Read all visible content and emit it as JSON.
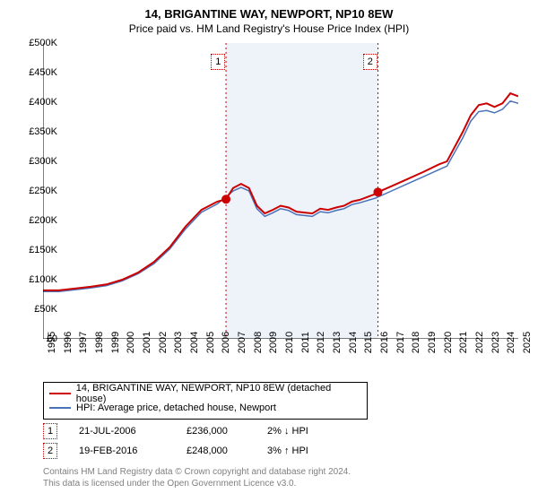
{
  "title": "14, BRIGANTINE WAY, NEWPORT, NP10 8EW",
  "subtitle": "Price paid vs. HM Land Registry's House Price Index (HPI)",
  "chart": {
    "type": "line",
    "x_years": [
      1995,
      1996,
      1997,
      1998,
      1999,
      2000,
      2001,
      2002,
      2003,
      2004,
      2005,
      2006,
      2007,
      2008,
      2009,
      2010,
      2011,
      2012,
      2013,
      2014,
      2015,
      2016,
      2017,
      2018,
      2019,
      2020,
      2021,
      2022,
      2023,
      2024,
      2025
    ],
    "ylim": [
      0,
      500000
    ],
    "ytick_step": 50000,
    "ytick_labels": [
      "£0",
      "£50K",
      "£100K",
      "£150K",
      "£200K",
      "£250K",
      "£300K",
      "£350K",
      "£400K",
      "£450K",
      "£500K"
    ],
    "background_color": "#ffffff",
    "axis_color": "#000000",
    "shaded_band": {
      "from_year": 2006.55,
      "to_year": 2016.14,
      "color": "#eef2f9"
    },
    "vlines": [
      {
        "year": 2006.55,
        "color": "#cc0000",
        "dash": "2,3"
      },
      {
        "year": 2016.14,
        "color": "#cc0000",
        "dash": "2,3"
      }
    ],
    "marker_points": [
      {
        "id": "1",
        "year": 2006.55,
        "value": 236000,
        "color": "#cc0000",
        "label_year": 2005.6
      },
      {
        "id": "2",
        "year": 2016.14,
        "value": 248000,
        "color": "#cc0000",
        "label_year": 2015.2
      }
    ],
    "series": [
      {
        "name": "14, BRIGANTINE WAY, NEWPORT, NP10 8EW (detached house)",
        "color": "#cc0000",
        "width": 2,
        "points": [
          [
            1995,
            82000
          ],
          [
            1996,
            82000
          ],
          [
            1997,
            85000
          ],
          [
            1998,
            88000
          ],
          [
            1999,
            92000
          ],
          [
            2000,
            100000
          ],
          [
            2001,
            112000
          ],
          [
            2002,
            130000
          ],
          [
            2003,
            155000
          ],
          [
            2004,
            190000
          ],
          [
            2005,
            218000
          ],
          [
            2006,
            232000
          ],
          [
            2006.55,
            236000
          ],
          [
            2007,
            255000
          ],
          [
            2007.5,
            262000
          ],
          [
            2008,
            255000
          ],
          [
            2008.5,
            225000
          ],
          [
            2009,
            212000
          ],
          [
            2009.5,
            218000
          ],
          [
            2010,
            225000
          ],
          [
            2010.5,
            222000
          ],
          [
            2011,
            215000
          ],
          [
            2012,
            212000
          ],
          [
            2012.5,
            220000
          ],
          [
            2013,
            218000
          ],
          [
            2013.5,
            222000
          ],
          [
            2014,
            225000
          ],
          [
            2014.5,
            232000
          ],
          [
            2015,
            235000
          ],
          [
            2015.5,
            240000
          ],
          [
            2016,
            245000
          ],
          [
            2016.14,
            248000
          ],
          [
            2017,
            258000
          ],
          [
            2018,
            270000
          ],
          [
            2019,
            282000
          ],
          [
            2020,
            295000
          ],
          [
            2020.5,
            300000
          ],
          [
            2021,
            325000
          ],
          [
            2021.5,
            350000
          ],
          [
            2022,
            378000
          ],
          [
            2022.5,
            395000
          ],
          [
            2023,
            398000
          ],
          [
            2023.5,
            392000
          ],
          [
            2024,
            398000
          ],
          [
            2024.5,
            415000
          ],
          [
            2025,
            410000
          ]
        ]
      },
      {
        "name": "HPI: Average price, detached house, Newport",
        "color": "#4a72b8",
        "width": 1.5,
        "points": [
          [
            1995,
            80000
          ],
          [
            1996,
            80000
          ],
          [
            1997,
            83000
          ],
          [
            1998,
            86000
          ],
          [
            1999,
            90000
          ],
          [
            2000,
            98000
          ],
          [
            2001,
            110000
          ],
          [
            2002,
            127000
          ],
          [
            2003,
            152000
          ],
          [
            2004,
            186000
          ],
          [
            2005,
            214000
          ],
          [
            2006,
            228000
          ],
          [
            2007,
            250000
          ],
          [
            2007.5,
            256000
          ],
          [
            2008,
            250000
          ],
          [
            2008.5,
            220000
          ],
          [
            2009,
            207000
          ],
          [
            2009.5,
            213000
          ],
          [
            2010,
            220000
          ],
          [
            2010.5,
            217000
          ],
          [
            2011,
            210000
          ],
          [
            2012,
            207000
          ],
          [
            2012.5,
            215000
          ],
          [
            2013,
            213000
          ],
          [
            2013.5,
            217000
          ],
          [
            2014,
            220000
          ],
          [
            2014.5,
            227000
          ],
          [
            2015,
            230000
          ],
          [
            2015.5,
            234000
          ],
          [
            2016,
            238000
          ],
          [
            2017,
            250000
          ],
          [
            2018,
            262000
          ],
          [
            2019,
            274000
          ],
          [
            2020,
            286000
          ],
          [
            2020.5,
            292000
          ],
          [
            2021,
            316000
          ],
          [
            2021.5,
            340000
          ],
          [
            2022,
            368000
          ],
          [
            2022.5,
            384000
          ],
          [
            2023,
            386000
          ],
          [
            2023.5,
            382000
          ],
          [
            2024,
            388000
          ],
          [
            2024.5,
            402000
          ],
          [
            2025,
            398000
          ]
        ]
      }
    ]
  },
  "legend": {
    "items": [
      {
        "color": "#cc0000",
        "label": "14, BRIGANTINE WAY, NEWPORT, NP10 8EW (detached house)"
      },
      {
        "color": "#4a72b8",
        "label": "HPI: Average price, detached house, Newport"
      }
    ]
  },
  "transactions": [
    {
      "id": "1",
      "color": "#cc0000",
      "date": "21-JUL-2006",
      "price": "£236,000",
      "pct": "2% ↓ HPI"
    },
    {
      "id": "2",
      "color": "#cc0000",
      "date": "19-FEB-2016",
      "price": "£248,000",
      "pct": "3% ↑ HPI"
    }
  ],
  "footer": {
    "line1": "Contains HM Land Registry data © Crown copyright and database right 2024.",
    "line2": "This data is licensed under the Open Government Licence v3.0."
  }
}
